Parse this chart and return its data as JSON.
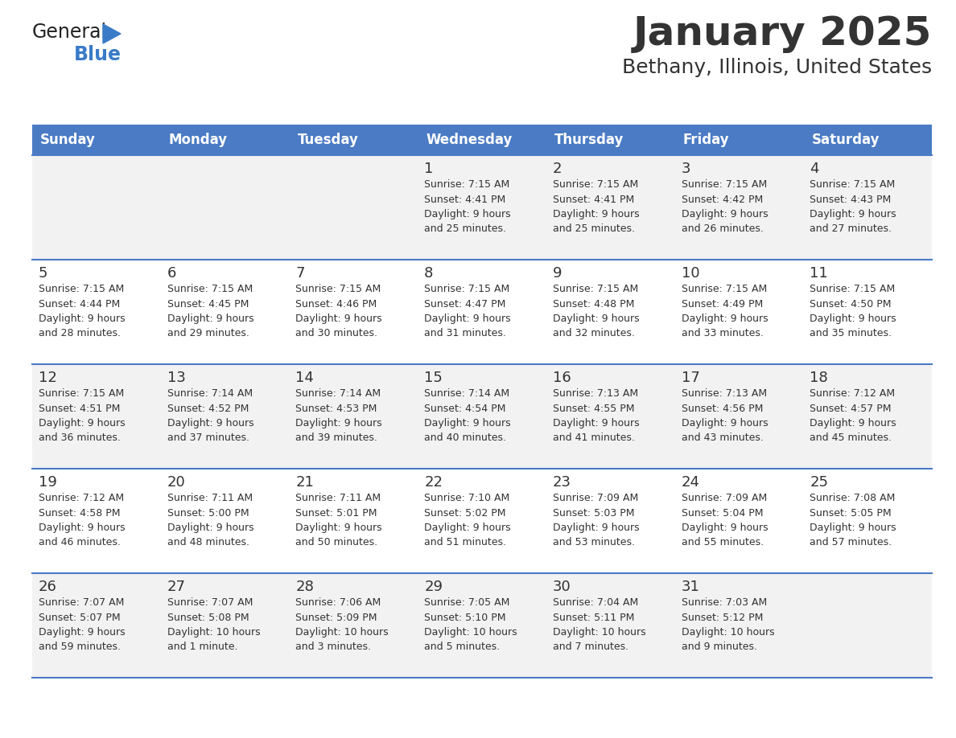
{
  "title": "January 2025",
  "subtitle": "Bethany, Illinois, United States",
  "header_color": "#4a7bc4",
  "header_text_color": "#FFFFFF",
  "day_names": [
    "Sunday",
    "Monday",
    "Tuesday",
    "Wednesday",
    "Thursday",
    "Friday",
    "Saturday"
  ],
  "background_color": "#FFFFFF",
  "cell_bg_even": "#F2F2F2",
  "cell_bg_odd": "#FFFFFF",
  "row_line_color": "#4a7bc4",
  "text_color": "#333333",
  "weeks": [
    [
      {
        "day": null,
        "info": null
      },
      {
        "day": null,
        "info": null
      },
      {
        "day": null,
        "info": null
      },
      {
        "day": 1,
        "info": "Sunrise: 7:15 AM\nSunset: 4:41 PM\nDaylight: 9 hours\nand 25 minutes."
      },
      {
        "day": 2,
        "info": "Sunrise: 7:15 AM\nSunset: 4:41 PM\nDaylight: 9 hours\nand 25 minutes."
      },
      {
        "day": 3,
        "info": "Sunrise: 7:15 AM\nSunset: 4:42 PM\nDaylight: 9 hours\nand 26 minutes."
      },
      {
        "day": 4,
        "info": "Sunrise: 7:15 AM\nSunset: 4:43 PM\nDaylight: 9 hours\nand 27 minutes."
      }
    ],
    [
      {
        "day": 5,
        "info": "Sunrise: 7:15 AM\nSunset: 4:44 PM\nDaylight: 9 hours\nand 28 minutes."
      },
      {
        "day": 6,
        "info": "Sunrise: 7:15 AM\nSunset: 4:45 PM\nDaylight: 9 hours\nand 29 minutes."
      },
      {
        "day": 7,
        "info": "Sunrise: 7:15 AM\nSunset: 4:46 PM\nDaylight: 9 hours\nand 30 minutes."
      },
      {
        "day": 8,
        "info": "Sunrise: 7:15 AM\nSunset: 4:47 PM\nDaylight: 9 hours\nand 31 minutes."
      },
      {
        "day": 9,
        "info": "Sunrise: 7:15 AM\nSunset: 4:48 PM\nDaylight: 9 hours\nand 32 minutes."
      },
      {
        "day": 10,
        "info": "Sunrise: 7:15 AM\nSunset: 4:49 PM\nDaylight: 9 hours\nand 33 minutes."
      },
      {
        "day": 11,
        "info": "Sunrise: 7:15 AM\nSunset: 4:50 PM\nDaylight: 9 hours\nand 35 minutes."
      }
    ],
    [
      {
        "day": 12,
        "info": "Sunrise: 7:15 AM\nSunset: 4:51 PM\nDaylight: 9 hours\nand 36 minutes."
      },
      {
        "day": 13,
        "info": "Sunrise: 7:14 AM\nSunset: 4:52 PM\nDaylight: 9 hours\nand 37 minutes."
      },
      {
        "day": 14,
        "info": "Sunrise: 7:14 AM\nSunset: 4:53 PM\nDaylight: 9 hours\nand 39 minutes."
      },
      {
        "day": 15,
        "info": "Sunrise: 7:14 AM\nSunset: 4:54 PM\nDaylight: 9 hours\nand 40 minutes."
      },
      {
        "day": 16,
        "info": "Sunrise: 7:13 AM\nSunset: 4:55 PM\nDaylight: 9 hours\nand 41 minutes."
      },
      {
        "day": 17,
        "info": "Sunrise: 7:13 AM\nSunset: 4:56 PM\nDaylight: 9 hours\nand 43 minutes."
      },
      {
        "day": 18,
        "info": "Sunrise: 7:12 AM\nSunset: 4:57 PM\nDaylight: 9 hours\nand 45 minutes."
      }
    ],
    [
      {
        "day": 19,
        "info": "Sunrise: 7:12 AM\nSunset: 4:58 PM\nDaylight: 9 hours\nand 46 minutes."
      },
      {
        "day": 20,
        "info": "Sunrise: 7:11 AM\nSunset: 5:00 PM\nDaylight: 9 hours\nand 48 minutes."
      },
      {
        "day": 21,
        "info": "Sunrise: 7:11 AM\nSunset: 5:01 PM\nDaylight: 9 hours\nand 50 minutes."
      },
      {
        "day": 22,
        "info": "Sunrise: 7:10 AM\nSunset: 5:02 PM\nDaylight: 9 hours\nand 51 minutes."
      },
      {
        "day": 23,
        "info": "Sunrise: 7:09 AM\nSunset: 5:03 PM\nDaylight: 9 hours\nand 53 minutes."
      },
      {
        "day": 24,
        "info": "Sunrise: 7:09 AM\nSunset: 5:04 PM\nDaylight: 9 hours\nand 55 minutes."
      },
      {
        "day": 25,
        "info": "Sunrise: 7:08 AM\nSunset: 5:05 PM\nDaylight: 9 hours\nand 57 minutes."
      }
    ],
    [
      {
        "day": 26,
        "info": "Sunrise: 7:07 AM\nSunset: 5:07 PM\nDaylight: 9 hours\nand 59 minutes."
      },
      {
        "day": 27,
        "info": "Sunrise: 7:07 AM\nSunset: 5:08 PM\nDaylight: 10 hours\nand 1 minute."
      },
      {
        "day": 28,
        "info": "Sunrise: 7:06 AM\nSunset: 5:09 PM\nDaylight: 10 hours\nand 3 minutes."
      },
      {
        "day": 29,
        "info": "Sunrise: 7:05 AM\nSunset: 5:10 PM\nDaylight: 10 hours\nand 5 minutes."
      },
      {
        "day": 30,
        "info": "Sunrise: 7:04 AM\nSunset: 5:11 PM\nDaylight: 10 hours\nand 7 minutes."
      },
      {
        "day": 31,
        "info": "Sunrise: 7:03 AM\nSunset: 5:12 PM\nDaylight: 10 hours\nand 9 minutes."
      },
      {
        "day": null,
        "info": null
      }
    ]
  ],
  "logo_general_color": "#222222",
  "logo_blue_color": "#3a7bc8",
  "logo_triangle_color": "#3a7bc8"
}
